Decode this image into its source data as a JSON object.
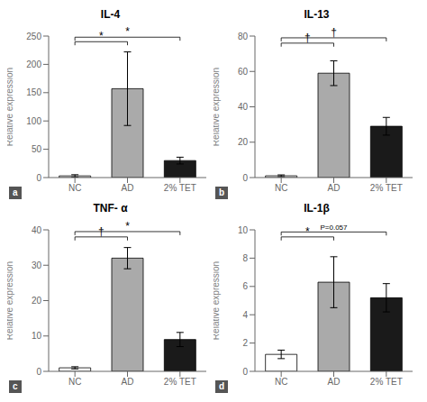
{
  "chart_data": [
    {
      "type": "bar",
      "title": "IL-4",
      "panel_label": "a",
      "ylabel": "Relative expression",
      "categories": [
        "NC",
        "AD",
        "2% TET"
      ],
      "values": [
        3,
        157,
        30
      ],
      "errors": [
        2,
        65,
        6
      ],
      "colors": [
        "white",
        "#aaaaaa",
        "#1a1a1a"
      ],
      "ylim": [
        0,
        250
      ],
      "yticks": [
        0,
        50,
        100,
        150,
        200,
        250
      ],
      "annotations": [
        {
          "from": "NC",
          "to": "AD",
          "y": 240,
          "label": "*"
        },
        {
          "from": "NC",
          "to": "2% TET",
          "y": 248,
          "label": "*"
        }
      ]
    },
    {
      "type": "bar",
      "title": "IL-13",
      "panel_label": "b",
      "ylabel": "Relative expression",
      "categories": [
        "NC",
        "AD",
        "2% TET"
      ],
      "values": [
        1,
        59,
        29
      ],
      "errors": [
        0.5,
        7,
        5
      ],
      "colors": [
        "white",
        "#aaaaaa",
        "#1a1a1a"
      ],
      "ylim": [
        0,
        80
      ],
      "yticks": [
        0,
        20,
        40,
        60,
        80
      ],
      "annotations": [
        {
          "from": "NC",
          "to": "AD",
          "y": 76,
          "label": "†"
        },
        {
          "from": "NC",
          "to": "2% TET",
          "y": 79,
          "label": "†"
        }
      ]
    },
    {
      "type": "bar",
      "title": "TNF- α",
      "panel_label": "c",
      "ylabel": "Relative expression",
      "categories": [
        "NC",
        "AD",
        "2% TET"
      ],
      "values": [
        1,
        32,
        9
      ],
      "errors": [
        0.3,
        3,
        2
      ],
      "colors": [
        "white",
        "#aaaaaa",
        "#1a1a1a"
      ],
      "ylim": [
        0,
        40
      ],
      "yticks": [
        0,
        10,
        20,
        30,
        40
      ],
      "annotations": [
        {
          "from": "NC",
          "to": "AD",
          "y": 38.0,
          "label": "†"
        },
        {
          "from": "NC",
          "to": "2% TET",
          "y": 39.5,
          "label": "*"
        }
      ]
    },
    {
      "type": "bar",
      "title": "IL-1β",
      "panel_label": "d",
      "ylabel": "Relative expression",
      "categories": [
        "NC",
        "AD",
        "2% TET"
      ],
      "values": [
        1.2,
        6.3,
        5.2
      ],
      "errors": [
        0.3,
        1.8,
        1.0
      ],
      "colors": [
        "white",
        "#aaaaaa",
        "#1a1a1a"
      ],
      "ylim": [
        0,
        10
      ],
      "yticks": [
        0,
        2,
        4,
        6,
        8,
        10
      ],
      "annotations": [
        {
          "from": "NC",
          "to": "AD",
          "y": 9.5,
          "label": "*"
        },
        {
          "from": "NC",
          "to": "2% TET",
          "y": 9.85,
          "label": "P=0.057"
        }
      ]
    }
  ]
}
